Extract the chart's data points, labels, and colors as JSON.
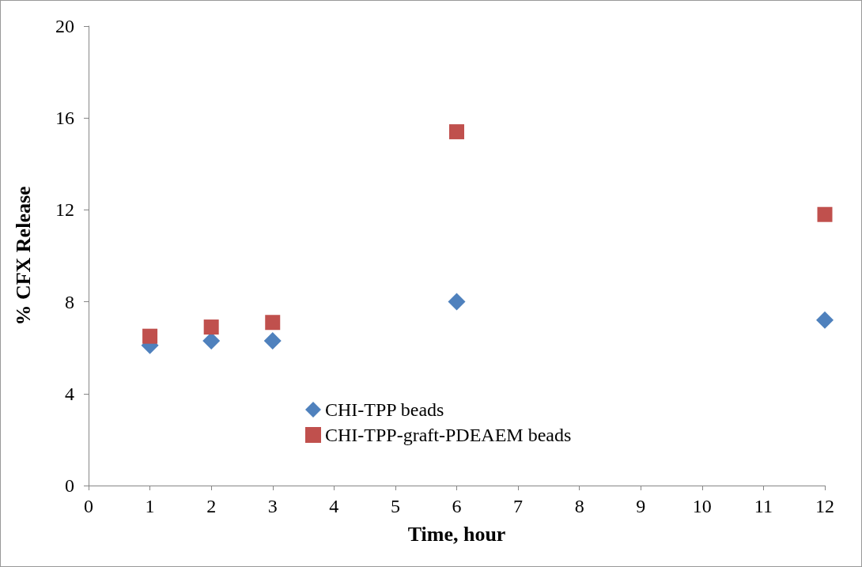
{
  "chart_data": {
    "type": "scatter",
    "xlabel": "Time, hour",
    "ylabel": "% CFX Release",
    "x": [
      1,
      2,
      3,
      6,
      12
    ],
    "series": [
      {
        "name": "CHI-TPP beads",
        "color": "#4f81bd",
        "marker": "diamond",
        "values": [
          6.1,
          6.3,
          6.3,
          8.0,
          7.2
        ]
      },
      {
        "name": "CHI-TPP-graft-PDEAEM beads",
        "color": "#c0504d",
        "marker": "square",
        "values": [
          6.5,
          6.9,
          7.1,
          15.4,
          11.8
        ]
      }
    ],
    "xlim": [
      0,
      12
    ],
    "xticks": [
      0,
      1,
      2,
      3,
      4,
      5,
      6,
      7,
      8,
      9,
      10,
      11,
      12
    ],
    "ylim": [
      0,
      20
    ],
    "yticks": [
      0,
      4,
      8,
      12,
      16,
      20
    ],
    "grid": false,
    "legend": "bottom left"
  }
}
